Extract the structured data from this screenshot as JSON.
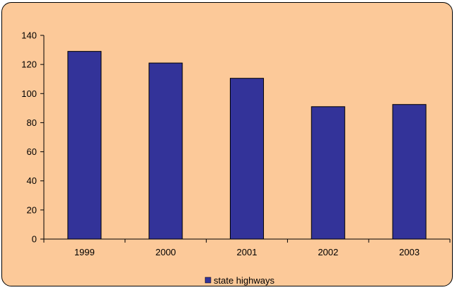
{
  "chart_data": {
    "type": "bar",
    "categories": [
      "1999",
      "2000",
      "2001",
      "2002",
      "2003"
    ],
    "series": [
      {
        "name": "state highways",
        "values": [
          129,
          121,
          110.5,
          91,
          92.5
        ]
      }
    ],
    "ylim": [
      0,
      140
    ],
    "yticks": [
      "0",
      "20",
      "40",
      "60",
      "80",
      "100",
      "120",
      "140"
    ],
    "grid": false,
    "legend": "bottom",
    "colors": {
      "bar": "#333399",
      "background": "#fcc999",
      "axis": "#000000"
    }
  }
}
